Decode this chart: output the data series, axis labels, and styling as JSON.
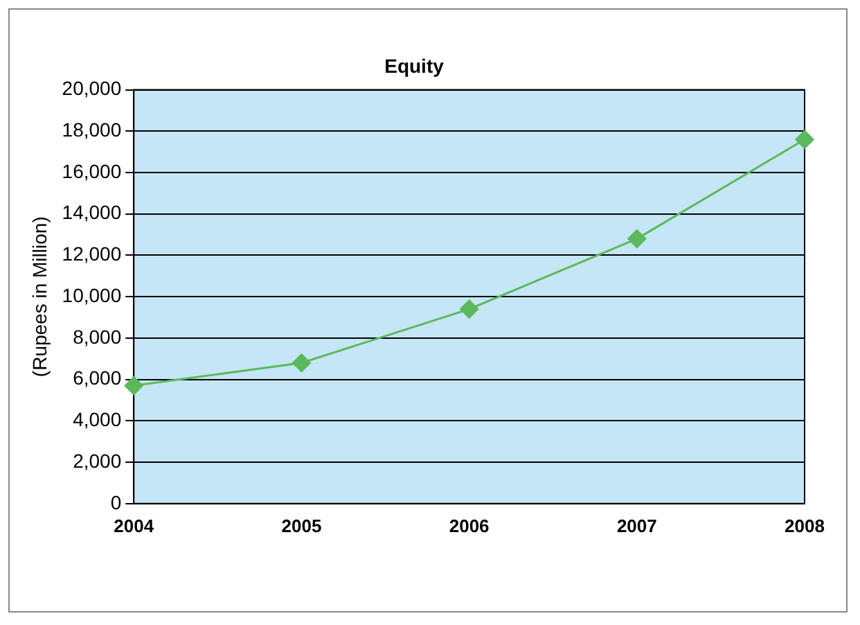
{
  "chart_data": {
    "type": "line",
    "title": "Equity",
    "ylabel": "(Rupees in Million)",
    "categories": [
      "2004",
      "2005",
      "2006",
      "2007",
      "2008"
    ],
    "series": [
      {
        "color": "#5cb85c",
        "values": [
          5700,
          6800,
          9400,
          12800,
          17600
        ]
      }
    ],
    "ylim": [
      0,
      20000
    ],
    "yticks": [
      {
        "value": 0,
        "label": "0"
      },
      {
        "value": 2000,
        "label": "2,000"
      },
      {
        "value": 4000,
        "label": "4,000"
      },
      {
        "value": 6000,
        "label": "6,000"
      },
      {
        "value": 8000,
        "label": "8,000"
      },
      {
        "value": 10000,
        "label": "10,000"
      },
      {
        "value": 12000,
        "label": "12,000"
      },
      {
        "value": 14000,
        "label": "14,000"
      },
      {
        "value": 16000,
        "label": "16,000"
      },
      {
        "value": 18000,
        "label": "18,000"
      },
      {
        "value": 20000,
        "label": "20,000"
      }
    ],
    "grid": "y",
    "legend": false,
    "marker": "diamond",
    "line_style": "solid"
  }
}
